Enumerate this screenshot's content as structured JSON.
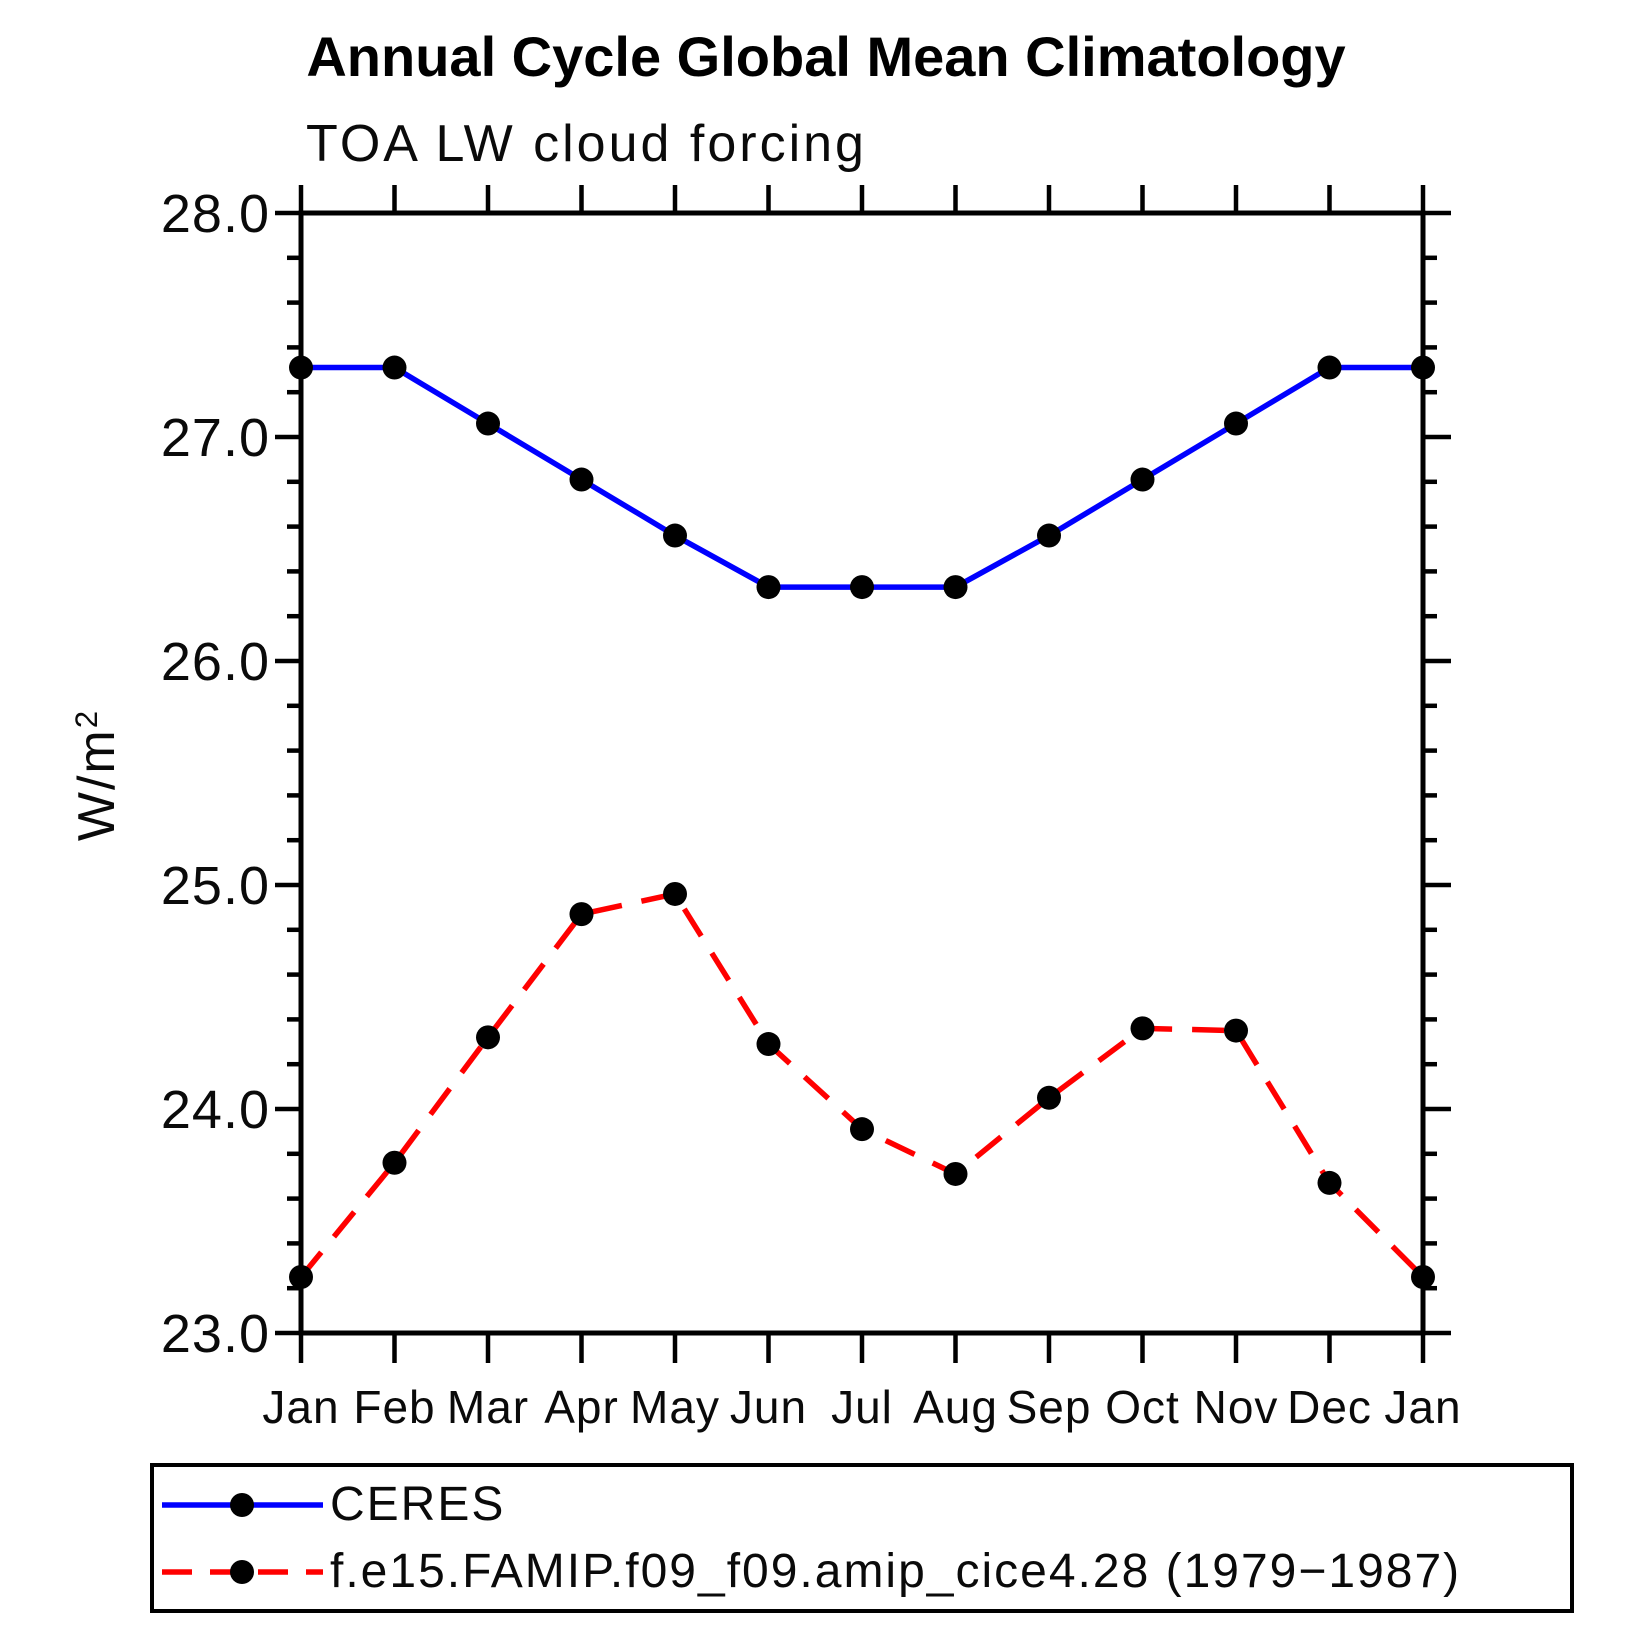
{
  "chart_data": {
    "type": "line",
    "title": "Annual Cycle Global Mean Climatology",
    "subtitle": "TOA LW cloud forcing",
    "categories": [
      "Jan",
      "Feb",
      "Mar",
      "Apr",
      "May",
      "Jun",
      "Jul",
      "Aug",
      "Sep",
      "Oct",
      "Nov",
      "Dec",
      "Jan"
    ],
    "series": [
      {
        "name": "CERES",
        "line_color": "#0000ff",
        "line_style": "solid",
        "marker": "filled-circle",
        "marker_color": "#000000",
        "values": [
          27.31,
          27.31,
          27.06,
          26.81,
          26.56,
          26.33,
          26.33,
          26.33,
          26.56,
          26.81,
          27.06,
          27.31,
          27.31
        ]
      },
      {
        "name": "f.e15.FAMIP.f09_f09.amip_cice4.28 (1979−1987)",
        "line_color": "#ff0000",
        "line_style": "dashed",
        "marker": "filled-circle",
        "marker_color": "#000000",
        "values": [
          23.25,
          23.76,
          24.32,
          24.87,
          24.96,
          24.29,
          23.91,
          23.71,
          24.05,
          24.36,
          24.35,
          23.67,
          23.25
        ]
      }
    ],
    "xlabel": "",
    "ylabel": "W/m²",
    "ylim": [
      23.0,
      28.0
    ],
    "y_major_tick_labels": [
      "23.0",
      "24.0",
      "25.0",
      "26.0",
      "27.0",
      "28.0"
    ],
    "y_major_tick_step": 1.0,
    "y_minor_tick_step": 0.2,
    "grid": false,
    "legend_position": "bottom-box"
  },
  "y_axis_label": {
    "base": "W/m",
    "sup": "2"
  }
}
